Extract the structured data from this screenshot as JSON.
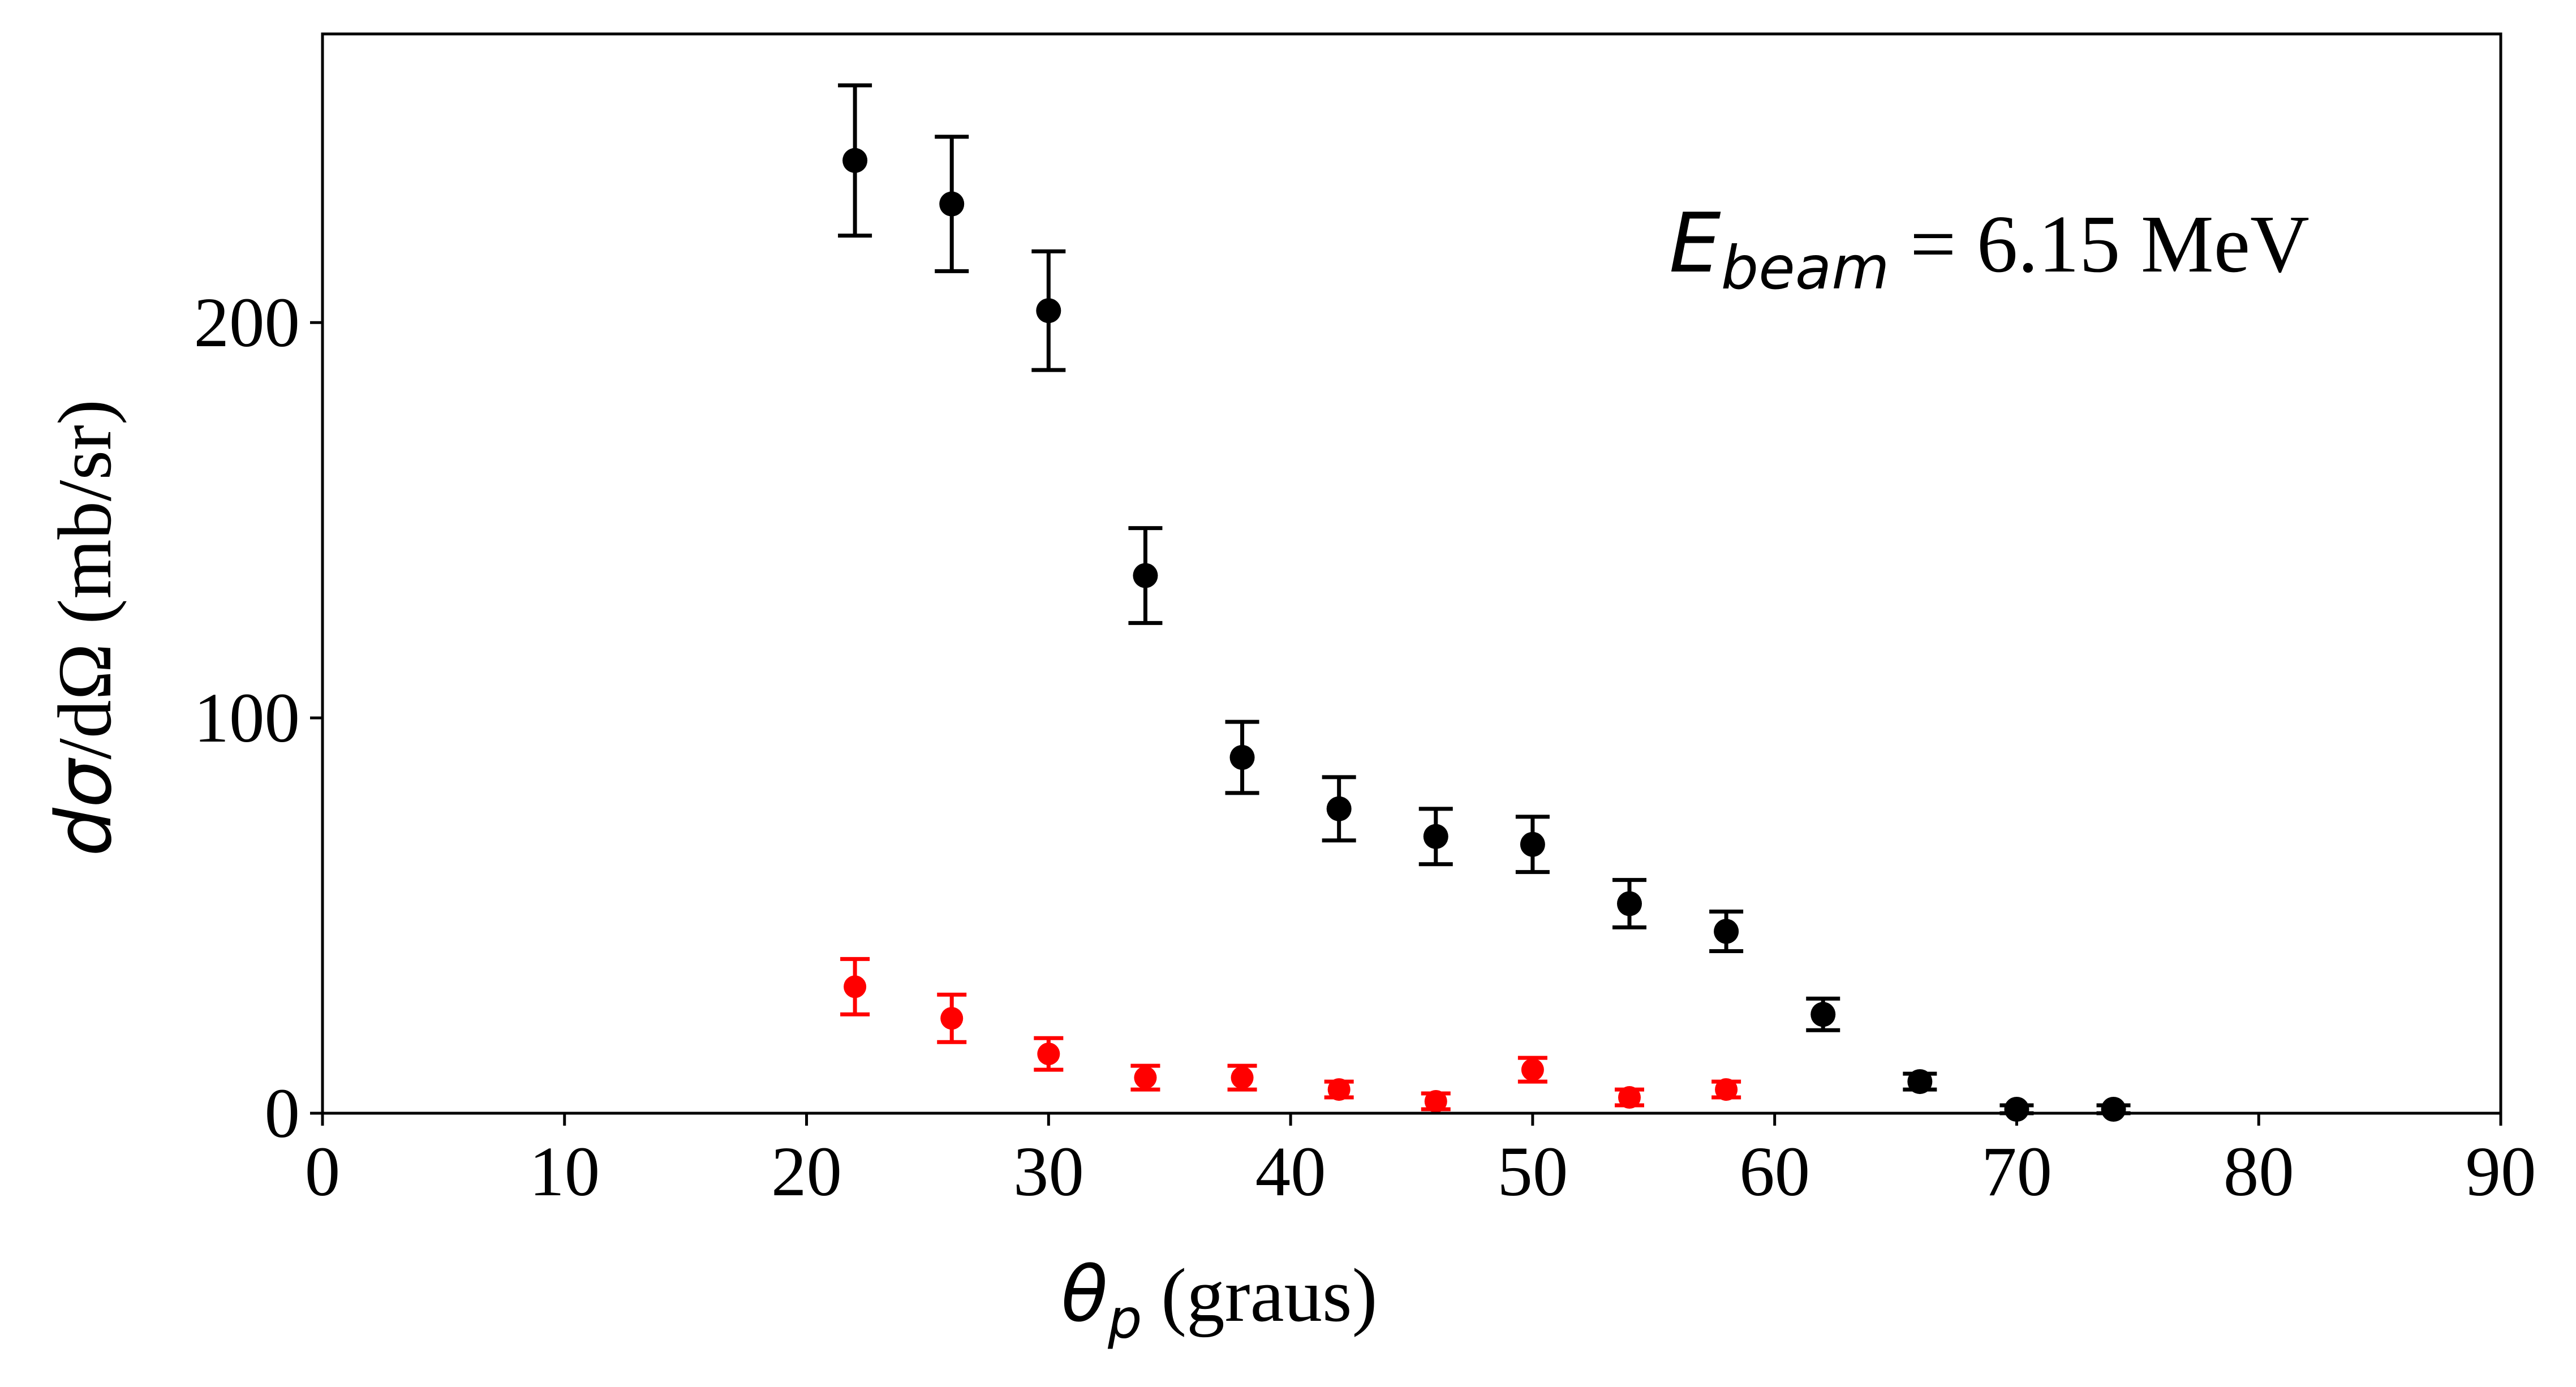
{
  "chart_data": {
    "type": "scatter",
    "xlabel": {
      "symbol": "θ",
      "subscript": "p",
      "text": " (graus)"
    },
    "ylabel": {
      "prefix": "d",
      "symbol": "σ",
      "text": "/dΩ (mb/sr)"
    },
    "annotation": {
      "symbol": "E",
      "subscript": "beam",
      "text": " = 6.15 MeV"
    },
    "xlim": [
      0,
      90
    ],
    "ylim": [
      0,
      273
    ],
    "xticks": [
      "0",
      "10",
      "20",
      "30",
      "40",
      "50",
      "60",
      "70",
      "80",
      "90"
    ],
    "yticks": [
      "0",
      "100",
      "200"
    ],
    "grid": false,
    "legend": "none",
    "series": [
      {
        "color": "#000000",
        "x": [
          22,
          26,
          30,
          34,
          38,
          42,
          46,
          50,
          54,
          58,
          62,
          66,
          70,
          74
        ],
        "y": [
          241,
          230,
          203,
          136,
          90,
          77,
          70,
          68,
          53,
          46,
          25,
          8,
          1,
          1
        ],
        "yerr": [
          19,
          17,
          15,
          12,
          9,
          8,
          7,
          7,
          6,
          5,
          4,
          2,
          1,
          1
        ]
      },
      {
        "color": "#ff0000",
        "x": [
          22,
          26,
          30,
          34,
          38,
          42,
          46,
          50,
          54,
          58
        ],
        "y": [
          32,
          24,
          15,
          9,
          9,
          6,
          3,
          11,
          4,
          6
        ],
        "yerr": [
          7,
          6,
          4,
          3,
          3,
          2,
          2,
          3,
          2,
          2
        ]
      }
    ]
  }
}
